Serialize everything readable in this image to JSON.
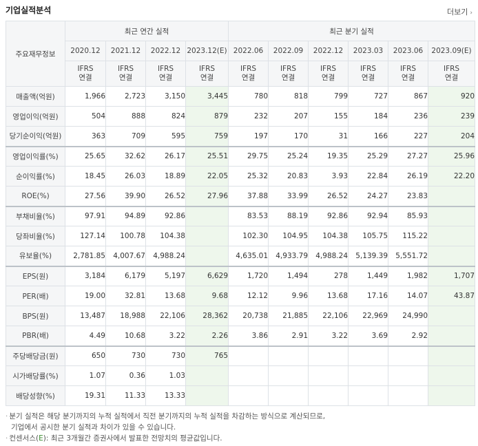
{
  "header": {
    "title": "기업실적분석",
    "more_label": "더보기"
  },
  "table": {
    "corner_label": "주요재무정보",
    "annual_label": "최근 연간 실적",
    "quarter_label": "최근 분기 실적",
    "annual_periods": [
      "2020.12",
      "2021.12",
      "2022.12",
      "2023.12(E)"
    ],
    "quarter_periods": [
      "2022.06",
      "2022.09",
      "2022.12",
      "2023.03",
      "2023.06",
      "2023.09(E)"
    ],
    "basis_top": "IFRS",
    "basis_bottom": "연결",
    "rows": [
      {
        "label": "매출액(억원)",
        "values": [
          "1,966",
          "2,723",
          "3,150",
          "3,445",
          "780",
          "818",
          "799",
          "727",
          "867",
          "920"
        ]
      },
      {
        "label": "영업이익(억원)",
        "values": [
          "504",
          "888",
          "824",
          "879",
          "232",
          "207",
          "155",
          "184",
          "236",
          "239"
        ]
      },
      {
        "label": "당기순이익(억원)",
        "values": [
          "363",
          "709",
          "595",
          "759",
          "197",
          "170",
          "31",
          "166",
          "227",
          "204"
        ]
      },
      {
        "label": "영업이익률(%)",
        "values": [
          "25.65",
          "32.62",
          "26.17",
          "25.51",
          "29.75",
          "25.24",
          "19.35",
          "25.29",
          "27.27",
          "25.96"
        ]
      },
      {
        "label": "순이익률(%)",
        "values": [
          "18.45",
          "26.03",
          "18.89",
          "22.05",
          "25.32",
          "20.83",
          "3.93",
          "22.84",
          "26.19",
          "22.20"
        ]
      },
      {
        "label": "ROE(%)",
        "values": [
          "27.56",
          "39.90",
          "26.52",
          "27.96",
          "37.88",
          "33.99",
          "26.52",
          "24.27",
          "23.83",
          ""
        ]
      },
      {
        "label": "부채비율(%)",
        "values": [
          "97.91",
          "94.89",
          "92.86",
          "",
          "83.53",
          "88.19",
          "92.86",
          "92.94",
          "85.93",
          ""
        ]
      },
      {
        "label": "당좌비율(%)",
        "values": [
          "127.14",
          "100.78",
          "104.38",
          "",
          "102.30",
          "104.95",
          "104.38",
          "105.75",
          "115.22",
          ""
        ]
      },
      {
        "label": "유보율(%)",
        "values": [
          "2,781.85",
          "4,007.67",
          "4,988.24",
          "",
          "4,635.01",
          "4,933.79",
          "4,988.24",
          "5,139.39",
          "5,551.72",
          ""
        ]
      },
      {
        "label": "EPS(원)",
        "values": [
          "3,184",
          "6,179",
          "5,197",
          "6,629",
          "1,720",
          "1,494",
          "278",
          "1,449",
          "1,982",
          "1,707"
        ]
      },
      {
        "label": "PER(배)",
        "values": [
          "19.00",
          "32.81",
          "13.68",
          "9.68",
          "12.12",
          "9.96",
          "13.68",
          "17.16",
          "14.07",
          "43.87"
        ]
      },
      {
        "label": "BPS(원)",
        "values": [
          "13,487",
          "18,988",
          "22,106",
          "28,362",
          "20,738",
          "21,885",
          "22,106",
          "22,969",
          "24,990",
          ""
        ]
      },
      {
        "label": "PBR(배)",
        "values": [
          "4.49",
          "10.68",
          "3.22",
          "2.26",
          "3.86",
          "2.91",
          "3.22",
          "3.69",
          "2.92",
          ""
        ]
      },
      {
        "label": "주당배당금(원)",
        "values": [
          "650",
          "730",
          "730",
          "765",
          "",
          "",
          "",
          "",
          "",
          ""
        ]
      },
      {
        "label": "시가배당률(%)",
        "values": [
          "1.07",
          "0.36",
          "1.03",
          "",
          "",
          "",
          "",
          "",
          "",
          ""
        ]
      },
      {
        "label": "배당성향(%)",
        "values": [
          "19.31",
          "11.33",
          "13.33",
          "",
          "",
          "",
          "",
          "",
          "",
          ""
        ]
      }
    ]
  },
  "notes": {
    "line1": "분기 실적은 해당 분기까지의 누적 실적에서 직전 분기까지의 누적 실적을 차감하는 방식으로 계산되므로,",
    "line2": "기업에서 공시한 분기 실적과 차이가 있을 수 있습니다.",
    "line3_pre": "컨센서스(",
    "line3_em": "E",
    "line3_post": "): 최근 3개월간 증권사에서 발표한 전망치의 평균값입니다."
  }
}
